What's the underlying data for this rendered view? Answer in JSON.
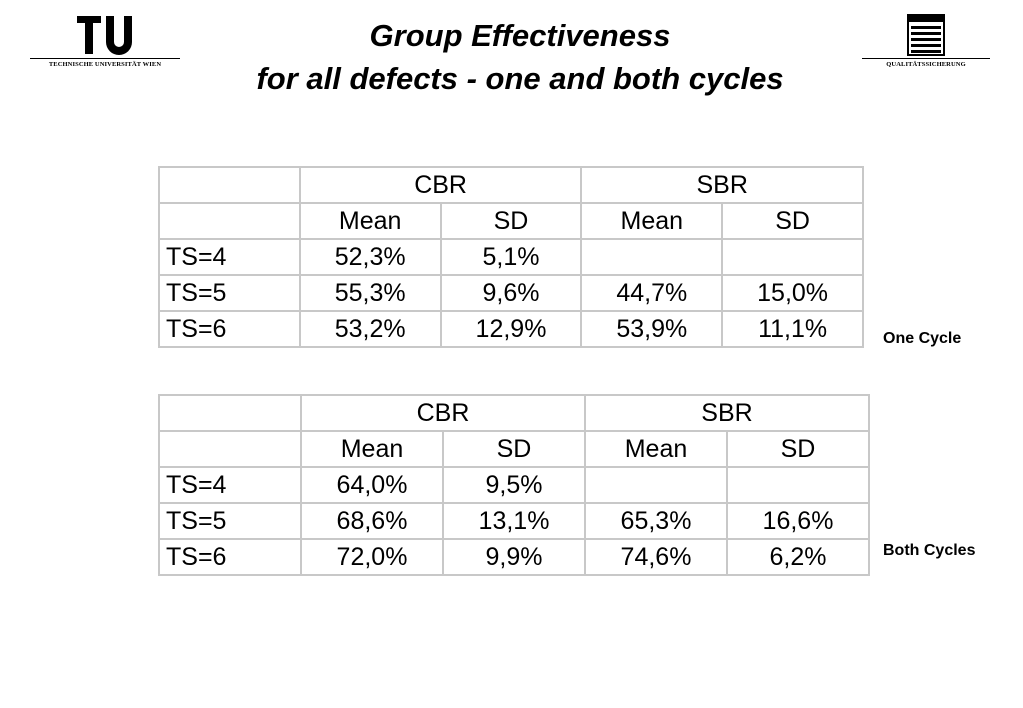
{
  "header": {
    "left_logo": {
      "mark": "TU",
      "caption": "TECHNISCHE UNIVERSITÄT WIEN",
      "icon": "tu-wien-logo-icon"
    },
    "right_logo": {
      "caption": "QUALITÄTSSICHERUNG",
      "icon": "quality-assurance-logo-icon"
    },
    "title_line1": "Group Effectiveness",
    "title_line2": "for all defects - one and both cycles"
  },
  "tables": [
    {
      "caption": "One Cycle",
      "group_headers": [
        "CBR",
        "SBR"
      ],
      "sub_headers": [
        "Mean",
        "SD",
        "Mean",
        "SD"
      ],
      "rows": [
        {
          "label": "TS=4",
          "cells": [
            "52,3%",
            "5,1%",
            "",
            ""
          ]
        },
        {
          "label": "TS=5",
          "cells": [
            "55,3%",
            "9,6%",
            "44,7%",
            "15,0%"
          ]
        },
        {
          "label": "TS=6",
          "cells": [
            "53,2%",
            "12,9%",
            "53,9%",
            "11,1%"
          ]
        }
      ]
    },
    {
      "caption": "Both Cycles",
      "group_headers": [
        "CBR",
        "SBR"
      ],
      "sub_headers": [
        "Mean",
        "SD",
        "Mean",
        "SD"
      ],
      "rows": [
        {
          "label": "TS=4",
          "cells": [
            "64,0%",
            "9,5%",
            "",
            ""
          ]
        },
        {
          "label": "TS=5",
          "cells": [
            "68,6%",
            "13,1%",
            "65,3%",
            "16,6%"
          ]
        },
        {
          "label": "TS=6",
          "cells": [
            "72,0%",
            "9,9%",
            "74,6%",
            "6,2%"
          ]
        }
      ]
    }
  ]
}
